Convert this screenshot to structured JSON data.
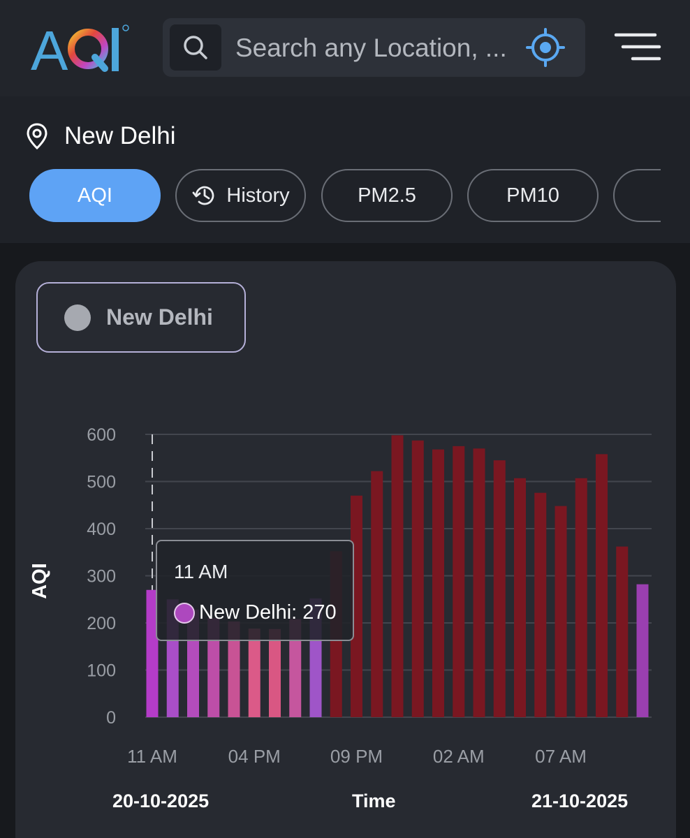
{
  "header": {
    "logo_text": "AQI",
    "search_placeholder": "Search any Location, ...",
    "icons": [
      "search-icon",
      "locate-icon",
      "menu-icon"
    ]
  },
  "location": {
    "name": "New Delhi",
    "icon": "map-pin-icon"
  },
  "tabs": [
    {
      "label": "AQI",
      "active": true
    },
    {
      "label": "History",
      "icon": "history-icon"
    },
    {
      "label": "PM2.5"
    },
    {
      "label": "PM10"
    },
    {
      "label": ""
    }
  ],
  "legend": {
    "label": "New Delhi",
    "color": "#a6a9b0"
  },
  "tooltip": {
    "time": "11 AM",
    "series_label": "New Delhi: 270",
    "color": "#ad48be"
  },
  "footer": {
    "date_start": "20-10-2025",
    "xlabel": "Time",
    "date_end": "21-10-2025"
  },
  "chart_data": {
    "type": "bar",
    "ylabel": "AQI",
    "xlabel": "Time",
    "ylim": [
      0,
      600
    ],
    "yticks": [
      "0",
      "100",
      "200",
      "300",
      "400",
      "500",
      "600"
    ],
    "x_tick_labels": [
      "11 AM",
      "04 PM",
      "09 PM",
      "02 AM",
      "07 AM"
    ],
    "x_tick_index": [
      0,
      5,
      10,
      15,
      20
    ],
    "grid": true,
    "highlight_index": 0,
    "series": [
      {
        "name": "New Delhi",
        "values": [
          270,
          250,
          228,
          210,
          203,
          188,
          187,
          208,
          252,
          352,
          470,
          522,
          598,
          587,
          568,
          575,
          570,
          545,
          507,
          476,
          448,
          507,
          558,
          362,
          282
        ],
        "colors": [
          "#b43cc8",
          "#a94ec8",
          "#b34cbc",
          "#bd4ea8",
          "#c85395",
          "#db5a88",
          "#d95783",
          "#c5569e",
          "#9f55c8",
          "#7a1721",
          "#7a1721",
          "#7a1721",
          "#7a1721",
          "#7a1721",
          "#7a1721",
          "#7a1721",
          "#7a1721",
          "#7a1721",
          "#7a1721",
          "#7a1721",
          "#7a1721",
          "#7a1721",
          "#7a1721",
          "#7a1721",
          "#9a3fb0"
        ]
      }
    ]
  }
}
